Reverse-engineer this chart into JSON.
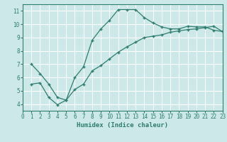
{
  "xlabel": "Humidex (Indice chaleur)",
  "bg_color": "#cce8e8",
  "grid_color": "#ffffff",
  "line_color": "#2e7d6e",
  "line1_x": [
    1,
    2,
    3,
    4,
    5,
    6,
    7,
    8,
    9,
    10,
    11,
    12,
    13,
    14,
    15,
    16,
    17,
    18,
    19,
    20,
    21,
    22,
    23
  ],
  "line1_y": [
    7.0,
    6.3,
    5.5,
    4.5,
    4.3,
    6.0,
    6.8,
    8.8,
    9.65,
    10.3,
    11.1,
    11.1,
    11.1,
    10.5,
    10.1,
    9.8,
    9.65,
    9.65,
    9.85,
    9.8,
    9.8,
    9.55,
    9.45
  ],
  "line2_x": [
    1,
    2,
    3,
    4,
    5,
    6,
    7,
    8,
    9,
    10,
    11,
    12,
    13,
    14,
    15,
    16,
    17,
    18,
    19,
    20,
    21,
    22,
    23
  ],
  "line2_y": [
    5.5,
    5.6,
    4.5,
    3.95,
    4.3,
    5.1,
    5.5,
    6.5,
    6.9,
    7.4,
    7.9,
    8.3,
    8.65,
    9.0,
    9.1,
    9.2,
    9.4,
    9.5,
    9.6,
    9.65,
    9.75,
    9.85,
    9.45
  ],
  "xlim": [
    0,
    23
  ],
  "ylim": [
    3.5,
    11.5
  ],
  "yticks": [
    4,
    5,
    6,
    7,
    8,
    9,
    10,
    11
  ],
  "xticks": [
    0,
    1,
    2,
    3,
    4,
    5,
    6,
    7,
    8,
    9,
    10,
    11,
    12,
    13,
    14,
    15,
    16,
    17,
    18,
    19,
    20,
    21,
    22,
    23
  ]
}
